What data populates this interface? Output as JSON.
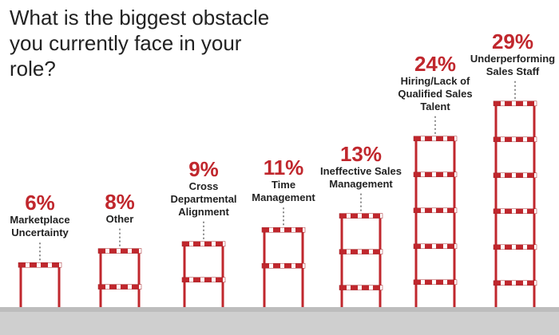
{
  "chart_data": {
    "type": "bar",
    "title": "What is the biggest obstacle you currently face in your role?",
    "categories": [
      "Marketplace Uncertainty",
      "Other",
      "Cross Departmental Alignment",
      "Time Management",
      "Ineffective Sales Management",
      "Hiring/Lack of Qualified Sales Talent",
      "Underperforming Sales Staff"
    ],
    "values": [
      6,
      8,
      9,
      11,
      13,
      24,
      29
    ],
    "value_labels": [
      "6%",
      "8%",
      "9%",
      "11%",
      "13%",
      "24%",
      "29%"
    ],
    "color": "#c0272d"
  }
}
